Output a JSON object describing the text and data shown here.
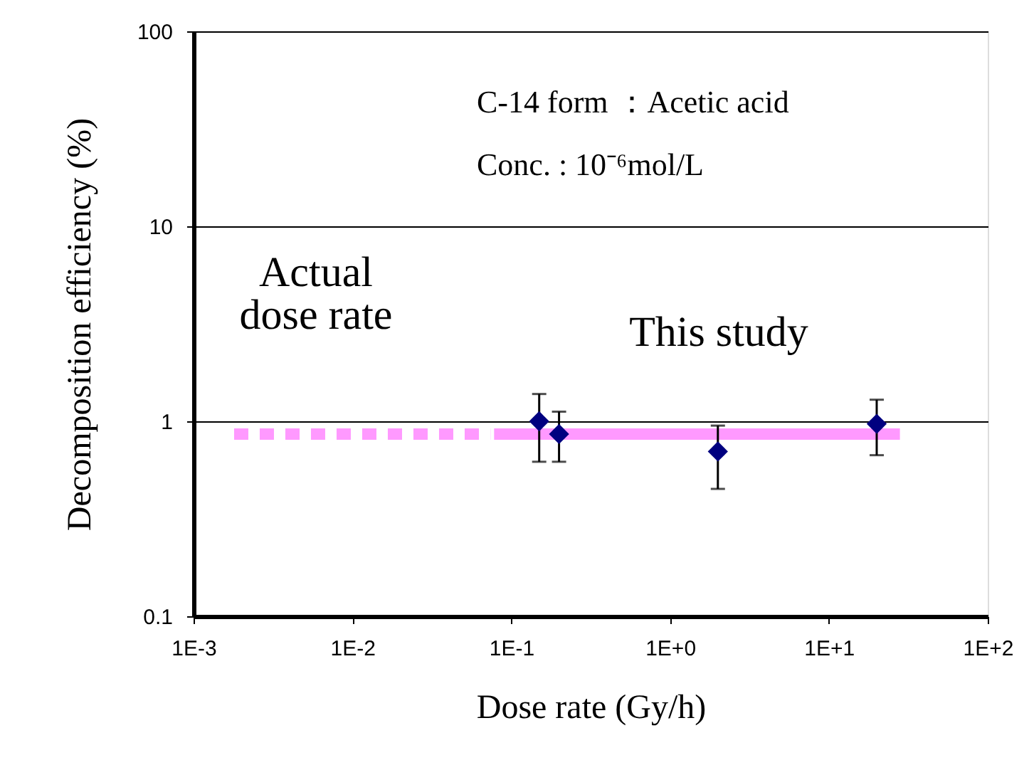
{
  "chart_data": {
    "type": "scatter",
    "xlabel": "Dose rate (Gy/h)",
    "ylabel": "Decomposition efficiency (%)",
    "log": "xy",
    "grid": "y",
    "xlim": [
      0.001,
      100
    ],
    "xticks": [
      {
        "value": 0.001,
        "label": "1E-3"
      },
      {
        "value": 0.01,
        "label": "1E-2"
      },
      {
        "value": 0.1,
        "label": "1E-1"
      },
      {
        "value": 1,
        "label": "1E+0"
      },
      {
        "value": 10,
        "label": "1E+1"
      },
      {
        "value": 100,
        "label": "1E+2"
      }
    ],
    "ylim": [
      0.1,
      100
    ],
    "yticks": [
      0.1,
      1,
      10,
      100
    ],
    "series": [
      {
        "type": "line",
        "line_style": "dashed",
        "marker": "none",
        "color": "#ff99ff",
        "x": [
          0.0018,
          0.074
        ],
        "values": [
          0.86,
          0.86
        ]
      },
      {
        "type": "line",
        "line_style": "solid",
        "marker": "none",
        "color": "#ff99ff",
        "x": [
          0.078,
          28
        ],
        "values": [
          0.86,
          0.86
        ]
      },
      {
        "type": "scatter",
        "marker": "diamond",
        "color": "#000080",
        "x": [
          0.15,
          0.2,
          2,
          20
        ],
        "values": [
          1.0,
          0.86,
          0.7,
          0.97
        ],
        "errors": [
          [
            0.62,
            1.38
          ],
          [
            0.62,
            1.12
          ],
          [
            0.45,
            0.95
          ],
          [
            0.67,
            1.29
          ]
        ]
      }
    ],
    "annotations": [
      "C-14 form ：Acetic acid",
      "Conc. : 10⁻⁶mol/L",
      "Actual\ndose rate",
      "This study"
    ]
  }
}
